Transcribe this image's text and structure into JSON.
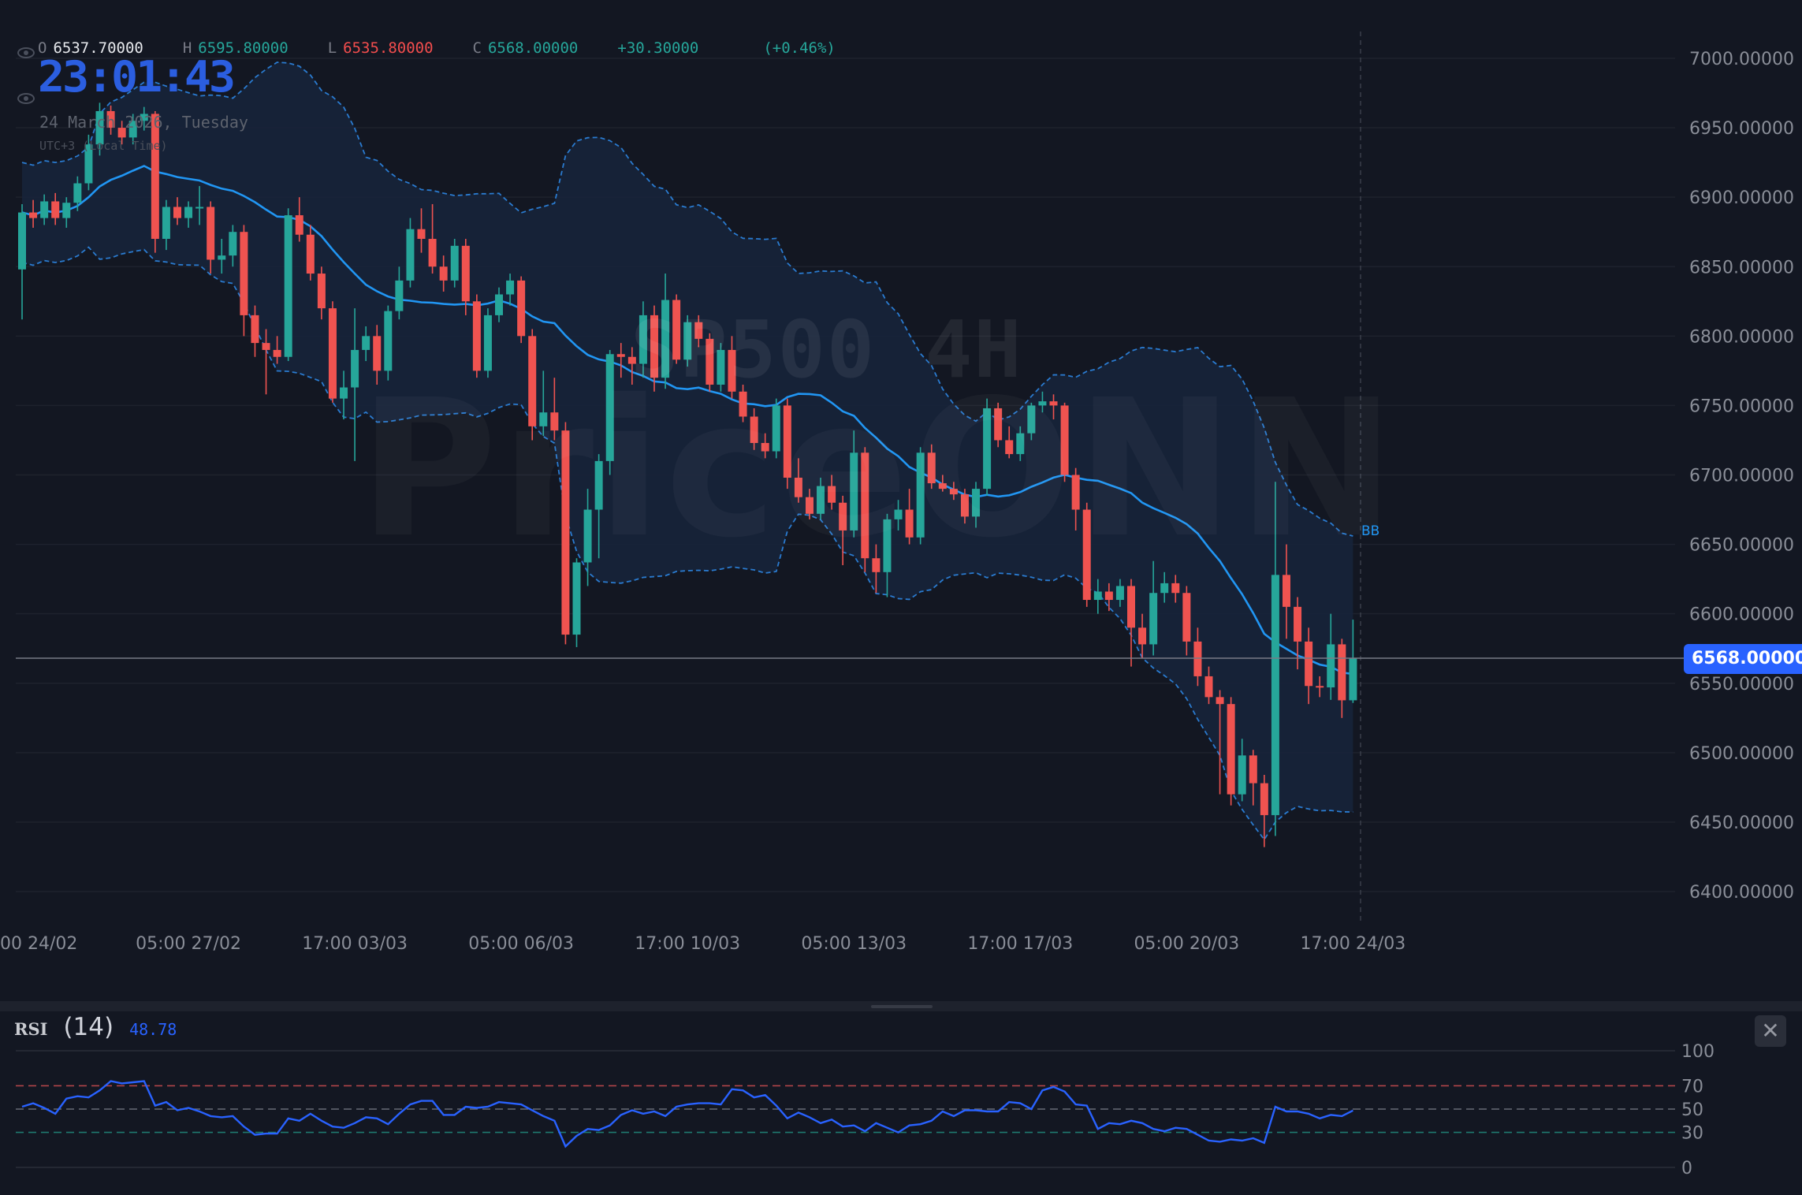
{
  "header": {
    "open_label": "O",
    "open": "6537.70000",
    "high_label": "H",
    "high": "6595.80000",
    "low_label": "L",
    "low": "6535.80000",
    "close_label": "C",
    "close": "6568.00000",
    "change": "+30.30000",
    "change_pct": "(+0.46%)"
  },
  "clock": {
    "time": "23:01:43",
    "date": "24 March 2026, Tuesday",
    "timezone": "UTC+3 (Local Time)"
  },
  "watermark": {
    "symbol": "SP500 4H",
    "brand": "PriceONN"
  },
  "indicator_labels": {
    "bollinger": "BB"
  },
  "rsi_panel": {
    "name": "RSI",
    "length": "(14)",
    "value": "48.78",
    "close_icon": "close-icon",
    "close_glyph": "✕"
  },
  "colors": {
    "background": "#131722",
    "up": "#26a69a",
    "down": "#ef5350",
    "bb_band": "#2a7bd0",
    "bb_basis": "#2196f3",
    "bb_fill": "#17243a",
    "rsi_line": "#2962ff",
    "last_price": "#2962ff",
    "clock": "#2b5ee0"
  },
  "chart_data": [
    {
      "type": "candlestick",
      "indicator": "Bollinger Bands",
      "last_price_label": "6568.00000",
      "last_price": 6568,
      "ylim": [
        6400,
        7000
      ],
      "y_ticks": [
        7000,
        6950,
        6900,
        6850,
        6800,
        6750,
        6700,
        6650,
        6600,
        6550,
        6500,
        6450,
        6400
      ],
      "y_tick_labels": [
        "7000.00000",
        "6950.00000",
        "6900.00000",
        "6850.00000",
        "6800.00000",
        "6750.00000",
        "6700.00000",
        "6650.00000",
        "6600.00000",
        "6550.00000",
        "6500.00000",
        "6450.00000",
        "6400.00000"
      ],
      "x_tick_labels": [
        "00 24/02",
        "05:00 27/02",
        "17:00 03/03",
        "05:00 06/03",
        "17:00 10/03",
        "05:00 13/03",
        "17:00 17/03",
        "05:00 20/03",
        "17:00 24/03"
      ],
      "grid": true,
      "ohlc": [
        [
          6848,
          6895,
          6812,
          6889
        ],
        [
          6889,
          6898,
          6878,
          6885
        ],
        [
          6885,
          6902,
          6880,
          6897
        ],
        [
          6897,
          6903,
          6880,
          6885
        ],
        [
          6885,
          6900,
          6878,
          6896
        ],
        [
          6896,
          6915,
          6890,
          6910
        ],
        [
          6910,
          6945,
          6905,
          6938
        ],
        [
          6938,
          6968,
          6930,
          6962
        ],
        [
          6962,
          6966,
          6945,
          6950
        ],
        [
          6950,
          6955,
          6938,
          6943
        ],
        [
          6943,
          6960,
          6938,
          6955
        ],
        [
          6955,
          6965,
          6948,
          6960
        ],
        [
          6960,
          6962,
          6860,
          6870
        ],
        [
          6870,
          6898,
          6862,
          6893
        ],
        [
          6893,
          6900,
          6880,
          6885
        ],
        [
          6885,
          6897,
          6878,
          6893
        ],
        [
          6893,
          6908,
          6880,
          6893
        ],
        [
          6893,
          6897,
          6845,
          6855
        ],
        [
          6855,
          6870,
          6845,
          6858
        ],
        [
          6858,
          6880,
          6850,
          6875
        ],
        [
          6875,
          6880,
          6800,
          6815
        ],
        [
          6815,
          6822,
          6785,
          6795
        ],
        [
          6795,
          6805,
          6758,
          6790
        ],
        [
          6790,
          6800,
          6780,
          6785
        ],
        [
          6785,
          6892,
          6782,
          6887
        ],
        [
          6887,
          6900,
          6868,
          6873
        ],
        [
          6873,
          6880,
          6840,
          6845
        ],
        [
          6845,
          6850,
          6812,
          6820
        ],
        [
          6820,
          6825,
          6752,
          6755
        ],
        [
          6755,
          6775,
          6740,
          6763
        ],
        [
          6763,
          6820,
          6710,
          6790
        ],
        [
          6790,
          6807,
          6782,
          6800
        ],
        [
          6800,
          6808,
          6765,
          6775
        ],
        [
          6775,
          6822,
          6768,
          6818
        ],
        [
          6818,
          6850,
          6812,
          6840
        ],
        [
          6840,
          6885,
          6835,
          6877
        ],
        [
          6877,
          6892,
          6860,
          6870
        ],
        [
          6870,
          6895,
          6845,
          6850
        ],
        [
          6850,
          6858,
          6832,
          6840
        ],
        [
          6840,
          6870,
          6835,
          6865
        ],
        [
          6865,
          6870,
          6815,
          6825
        ],
        [
          6825,
          6830,
          6770,
          6775
        ],
        [
          6775,
          6820,
          6770,
          6815
        ],
        [
          6815,
          6835,
          6810,
          6830
        ],
        [
          6830,
          6845,
          6822,
          6840
        ],
        [
          6840,
          6843,
          6795,
          6800
        ],
        [
          6800,
          6805,
          6725,
          6735
        ],
        [
          6735,
          6775,
          6728,
          6745
        ],
        [
          6745,
          6770,
          6725,
          6732
        ],
        [
          6732,
          6738,
          6578,
          6585
        ],
        [
          6585,
          6640,
          6576,
          6637
        ],
        [
          6637,
          6690,
          6620,
          6675
        ],
        [
          6675,
          6715,
          6640,
          6710
        ],
        [
          6710,
          6790,
          6700,
          6787
        ],
        [
          6787,
          6795,
          6770,
          6785
        ],
        [
          6785,
          6792,
          6765,
          6780
        ],
        [
          6780,
          6825,
          6770,
          6815
        ],
        [
          6815,
          6822,
          6760,
          6770
        ],
        [
          6770,
          6845,
          6762,
          6826
        ],
        [
          6826,
          6830,
          6780,
          6783
        ],
        [
          6783,
          6815,
          6778,
          6810
        ],
        [
          6810,
          6815,
          6792,
          6798
        ],
        [
          6798,
          6802,
          6760,
          6765
        ],
        [
          6765,
          6795,
          6760,
          6790
        ],
        [
          6790,
          6800,
          6755,
          6760
        ],
        [
          6760,
          6765,
          6738,
          6742
        ],
        [
          6742,
          6748,
          6718,
          6723
        ],
        [
          6723,
          6730,
          6712,
          6717
        ],
        [
          6717,
          6755,
          6712,
          6750
        ],
        [
          6750,
          6755,
          6690,
          6698
        ],
        [
          6698,
          6712,
          6680,
          6684
        ],
        [
          6684,
          6690,
          6668,
          6672
        ],
        [
          6672,
          6698,
          6668,
          6692
        ],
        [
          6692,
          6700,
          6675,
          6680
        ],
        [
          6680,
          6685,
          6635,
          6660
        ],
        [
          6660,
          6732,
          6655,
          6716
        ],
        [
          6716,
          6720,
          6630,
          6640
        ],
        [
          6640,
          6650,
          6615,
          6630
        ],
        [
          6630,
          6672,
          6612,
          6668
        ],
        [
          6668,
          6682,
          6660,
          6675
        ],
        [
          6675,
          6690,
          6650,
          6655
        ],
        [
          6655,
          6720,
          6650,
          6716
        ],
        [
          6716,
          6722,
          6690,
          6694
        ],
        [
          6694,
          6700,
          6688,
          6690
        ],
        [
          6690,
          6695,
          6682,
          6686
        ],
        [
          6686,
          6690,
          6665,
          6670
        ],
        [
          6670,
          6695,
          6662,
          6690
        ],
        [
          6690,
          6755,
          6685,
          6748
        ],
        [
          6748,
          6752,
          6720,
          6725
        ],
        [
          6725,
          6735,
          6712,
          6715
        ],
        [
          6715,
          6735,
          6710,
          6730
        ],
        [
          6730,
          6752,
          6725,
          6750
        ],
        [
          6750,
          6760,
          6745,
          6753
        ],
        [
          6753,
          6758,
          6740,
          6750
        ],
        [
          6750,
          6752,
          6695,
          6700
        ],
        [
          6700,
          6705,
          6660,
          6675
        ],
        [
          6675,
          6680,
          6605,
          6610
        ],
        [
          6610,
          6625,
          6600,
          6616
        ],
        [
          6616,
          6622,
          6602,
          6610
        ],
        [
          6610,
          6625,
          6605,
          6620
        ],
        [
          6620,
          6625,
          6562,
          6590
        ],
        [
          6590,
          6600,
          6568,
          6578
        ],
        [
          6578,
          6638,
          6570,
          6615
        ],
        [
          6615,
          6630,
          6608,
          6622
        ],
        [
          6622,
          6628,
          6608,
          6615
        ],
        [
          6615,
          6620,
          6570,
          6580
        ],
        [
          6580,
          6590,
          6548,
          6555
        ],
        [
          6555,
          6562,
          6535,
          6540
        ],
        [
          6540,
          6545,
          6470,
          6535
        ],
        [
          6535,
          6540,
          6462,
          6470
        ],
        [
          6470,
          6510,
          6465,
          6498
        ],
        [
          6498,
          6502,
          6462,
          6478
        ],
        [
          6478,
          6484,
          6432,
          6455
        ],
        [
          6455,
          6695,
          6440,
          6628
        ],
        [
          6628,
          6650,
          6582,
          6605
        ],
        [
          6605,
          6612,
          6560,
          6580
        ],
        [
          6580,
          6590,
          6535,
          6548
        ],
        [
          6548,
          6555,
          6540,
          6547
        ],
        [
          6547,
          6600,
          6538,
          6578
        ],
        [
          6578,
          6582,
          6525,
          6537.7
        ],
        [
          6537.7,
          6595.8,
          6535.8,
          6568
        ]
      ]
    },
    {
      "type": "line",
      "indicator": "RSI",
      "ylim": [
        0,
        100
      ],
      "y_ticks": [
        100,
        70,
        50,
        30,
        0
      ],
      "y_tick_labels": [
        "100",
        "70",
        "50",
        "30",
        "0"
      ],
      "values": [
        52,
        55,
        51,
        46,
        59,
        61,
        60,
        66,
        74,
        72,
        73,
        74,
        53,
        56,
        49,
        51,
        48,
        44,
        43,
        44,
        35,
        28,
        29,
        29,
        42,
        40,
        46,
        40,
        35,
        34,
        38,
        43,
        42,
        37,
        46,
        54,
        57,
        57,
        45,
        45,
        52,
        51,
        52,
        56,
        55,
        54,
        49,
        44,
        40,
        18,
        27,
        33,
        32,
        36,
        45,
        49,
        46,
        48,
        44,
        52,
        54,
        55,
        55,
        54,
        67,
        66,
        60,
        62,
        53,
        42,
        47,
        43,
        38,
        41,
        35,
        36,
        31,
        38,
        34,
        30,
        36,
        37,
        40,
        48,
        44,
        49,
        49,
        48,
        48,
        56,
        55,
        50,
        66,
        69,
        65,
        54,
        53,
        33,
        38,
        37,
        40,
        38,
        33,
        31,
        34,
        33,
        28,
        23,
        22,
        24,
        23,
        25,
        21,
        52,
        48,
        48,
        46,
        42,
        45,
        44,
        48.78
      ]
    }
  ]
}
